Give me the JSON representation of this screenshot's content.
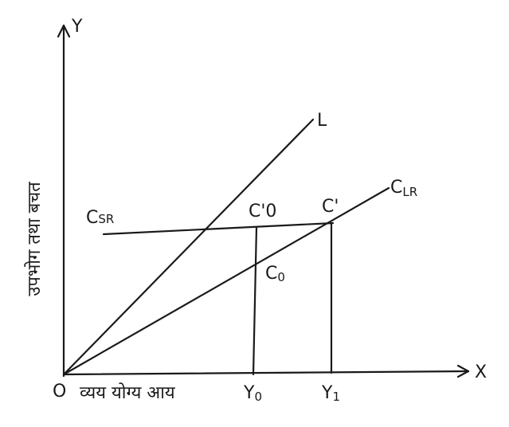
{
  "axes": {
    "y": "Y",
    "x": "X",
    "origin": "O",
    "y_label": "उपभोग तथा बचत",
    "x_label": "व्यय योग्य आय"
  },
  "lines": {
    "L": "L",
    "CLR": {
      "main": "C",
      "sub": "LR"
    },
    "CSR": {
      "main": "C",
      "sub": "SR"
    }
  },
  "points": {
    "C0_prime": {
      "main": "C'",
      "sub": "0"
    },
    "C_prime": "C'",
    "C0": {
      "main": "C",
      "sub": "0"
    }
  },
  "incomes": {
    "Y0": {
      "main": "Y",
      "sub": "0"
    },
    "Y1": {
      "main": "Y",
      "sub": "1"
    }
  }
}
